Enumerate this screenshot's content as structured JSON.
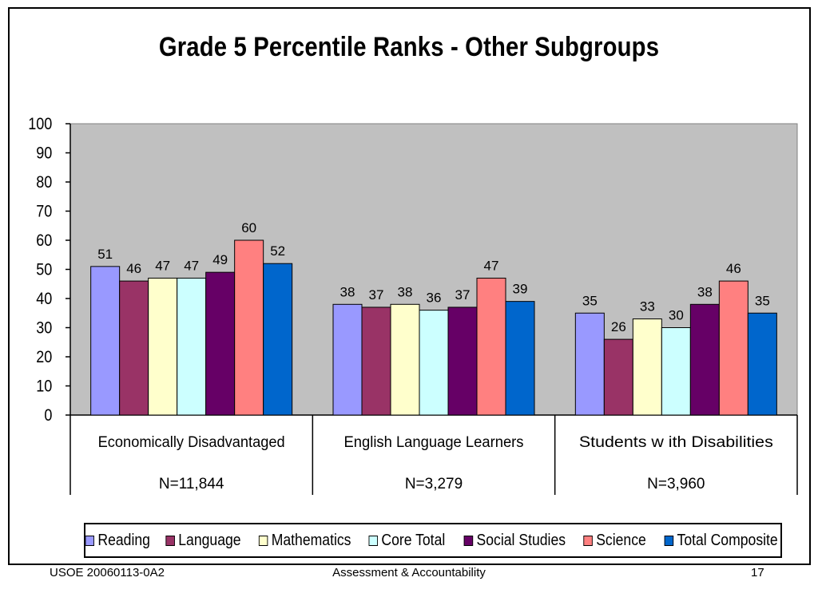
{
  "colors": {
    "plot_background": "#c0c0c0",
    "Reading": "#9999ff",
    "Language": "#993366",
    "Mathematics": "#ffffcc",
    "Core Total": "#ccffff",
    "Social Studies": "#660066",
    "Science": "#ff8080",
    "Total Composite": "#0066cc"
  },
  "chart_data": {
    "type": "bar",
    "title": "Grade 5 Percentile Ranks - Other Subgroups",
    "categories": [
      "Economically Disadvantaged",
      "English Language Learners",
      "Students w ith Disabilities"
    ],
    "category_sublabels": [
      "N=11,844",
      "N=3,279",
      "N=3,960"
    ],
    "series": [
      {
        "name": "Reading",
        "values": [
          51,
          38,
          35
        ]
      },
      {
        "name": "Language",
        "values": [
          46,
          37,
          26
        ]
      },
      {
        "name": "Mathematics",
        "values": [
          47,
          38,
          33
        ]
      },
      {
        "name": "Core Total",
        "values": [
          47,
          36,
          30
        ]
      },
      {
        "name": "Social Studies",
        "values": [
          49,
          37,
          38
        ]
      },
      {
        "name": "Science",
        "values": [
          60,
          47,
          46
        ]
      },
      {
        "name": "Total Composite",
        "values": [
          52,
          39,
          35
        ]
      }
    ],
    "ylim": [
      0,
      100
    ],
    "yticks": [
      "0",
      "10",
      "20",
      "30",
      "40",
      "50",
      "60",
      "70",
      "80",
      "90",
      "100"
    ],
    "grid": false,
    "legend_position": "bottom"
  },
  "footer": {
    "left": "USOE 20060113-0A2",
    "center": "Assessment & Accountability",
    "right": "17"
  }
}
